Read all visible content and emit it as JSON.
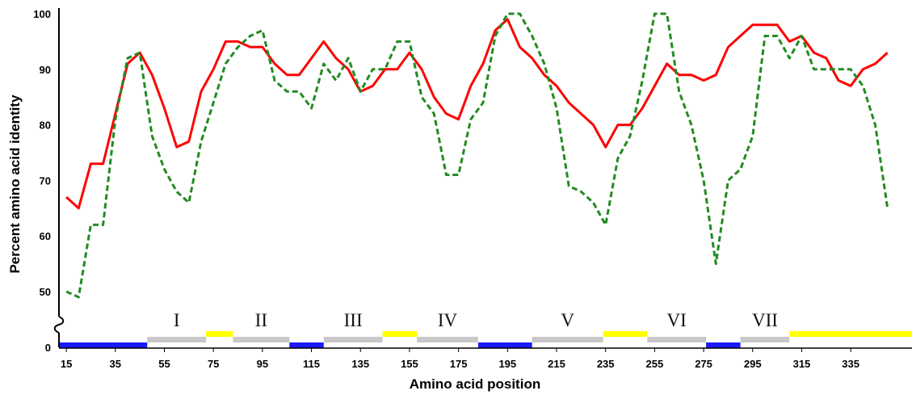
{
  "chart_data": {
    "type": "line",
    "title": "",
    "xlabel": "Amino acid position",
    "ylabel": "Percent amino acid identity",
    "x_ticks": [
      15,
      35,
      55,
      75,
      95,
      115,
      135,
      155,
      175,
      195,
      215,
      235,
      255,
      275,
      295,
      315,
      335
    ],
    "y_ticks": [
      0,
      50,
      60,
      70,
      80,
      90,
      100
    ],
    "y_break": [
      0,
      45
    ],
    "xlim": [
      12,
      360
    ],
    "ylim": [
      0,
      100
    ],
    "grid": false,
    "legend": "none",
    "series": [
      {
        "name": "",
        "color": "#ff0000",
        "style": "solid",
        "x": [
          15,
          20,
          25,
          30,
          35,
          40,
          45,
          50,
          55,
          60,
          65,
          70,
          75,
          80,
          85,
          90,
          95,
          100,
          105,
          110,
          115,
          120,
          125,
          130,
          135,
          140,
          145,
          150,
          155,
          160,
          165,
          170,
          175,
          180,
          185,
          190,
          195,
          200,
          205,
          210,
          215,
          220,
          225,
          230,
          235,
          240,
          245,
          250,
          255,
          260,
          265,
          270,
          275,
          280,
          285,
          290,
          295,
          300,
          305,
          310,
          315,
          320,
          325,
          330,
          335,
          340,
          345,
          350
        ],
        "values": [
          67,
          65,
          73,
          73,
          82,
          91,
          93,
          89,
          83,
          76,
          77,
          86,
          90,
          95,
          95,
          94,
          94,
          91,
          89,
          89,
          92,
          95,
          92,
          90,
          86,
          87,
          90,
          90,
          93,
          90,
          85,
          82,
          81,
          87,
          91,
          97,
          99,
          94,
          92,
          89,
          87,
          84,
          82,
          80,
          76,
          80,
          80,
          83,
          87,
          91,
          89,
          89,
          88,
          89,
          94,
          96,
          98,
          98,
          98,
          95,
          96,
          93,
          92,
          88,
          87,
          90,
          91,
          93
        ]
      },
      {
        "name": "",
        "color": "#228b22",
        "style": "dashed",
        "x": [
          15,
          20,
          25,
          30,
          35,
          40,
          45,
          50,
          55,
          60,
          65,
          70,
          75,
          80,
          85,
          90,
          95,
          100,
          105,
          110,
          115,
          120,
          125,
          130,
          135,
          140,
          145,
          150,
          155,
          160,
          165,
          170,
          175,
          180,
          185,
          190,
          195,
          200,
          205,
          210,
          215,
          220,
          225,
          230,
          235,
          240,
          245,
          250,
          255,
          260,
          265,
          270,
          275,
          280,
          285,
          290,
          295,
          300,
          305,
          310,
          315,
          320,
          325,
          330,
          335,
          340,
          345,
          350
        ],
        "values": [
          50,
          49,
          62,
          62,
          81,
          92,
          93,
          78,
          72,
          68,
          66,
          77,
          84,
          91,
          94,
          96,
          97,
          88,
          86,
          86,
          83,
          91,
          88,
          92,
          86,
          90,
          90,
          95,
          95,
          85,
          82,
          71,
          71,
          81,
          84,
          96,
          100,
          100,
          96,
          91,
          83,
          69,
          68,
          66,
          62,
          74,
          78,
          88,
          100,
          100,
          86,
          80,
          70,
          55,
          70,
          72,
          78,
          96,
          96,
          92,
          96,
          90,
          90,
          90,
          90,
          87,
          80,
          65
        ]
      }
    ],
    "regions": [
      {
        "label": "",
        "color": "#1a1aff",
        "start": 12,
        "end": 48
      },
      {
        "label": "I",
        "color": "#c8c8c8",
        "start": 48,
        "end": 72
      },
      {
        "label": "",
        "color": "#ffff00",
        "start": 72,
        "end": 83
      },
      {
        "label": "II",
        "color": "#c8c8c8",
        "start": 83,
        "end": 106
      },
      {
        "label": "",
        "color": "#1a1aff",
        "start": 106,
        "end": 120
      },
      {
        "label": "III",
        "color": "#c8c8c8",
        "start": 120,
        "end": 144
      },
      {
        "label": "",
        "color": "#ffff00",
        "start": 144,
        "end": 158
      },
      {
        "label": "IV",
        "color": "#c8c8c8",
        "start": 158,
        "end": 183
      },
      {
        "label": "",
        "color": "#1a1aff",
        "start": 183,
        "end": 205
      },
      {
        "label": "V",
        "color": "#c8c8c8",
        "start": 205,
        "end": 234
      },
      {
        "label": "",
        "color": "#ffff00",
        "start": 234,
        "end": 252
      },
      {
        "label": "VI",
        "color": "#c8c8c8",
        "start": 252,
        "end": 276
      },
      {
        "label": "",
        "color": "#1a1aff",
        "start": 276,
        "end": 290
      },
      {
        "label": "VII",
        "color": "#c8c8c8",
        "start": 290,
        "end": 310
      },
      {
        "label": "",
        "color": "#ffff00",
        "start": 310,
        "end": 360
      }
    ]
  }
}
